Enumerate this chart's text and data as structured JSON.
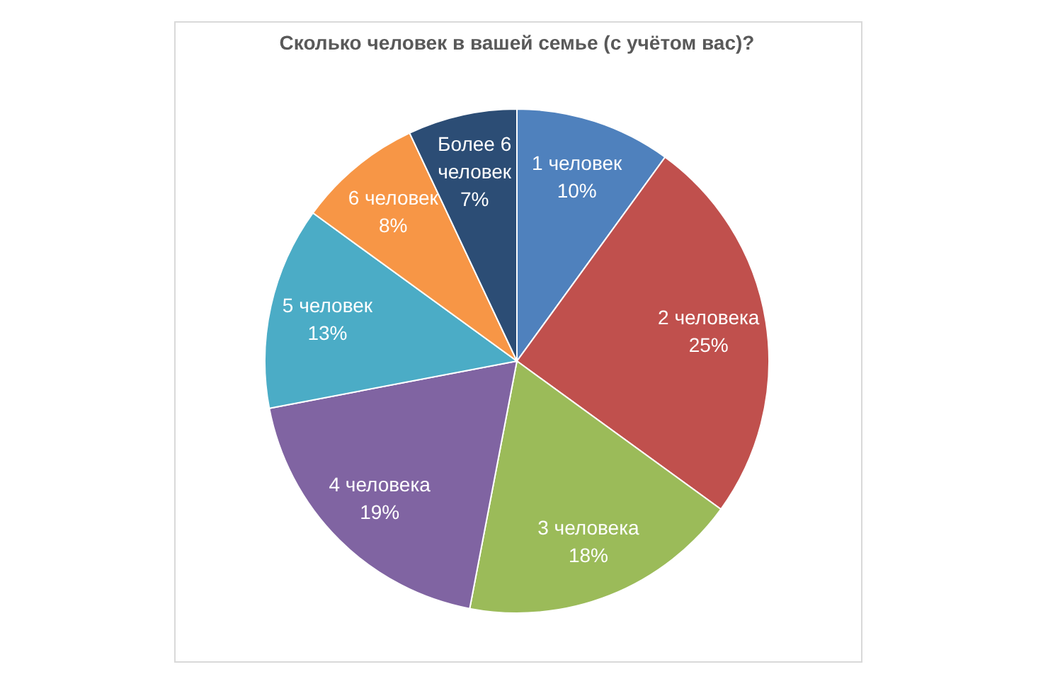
{
  "chart_data": {
    "type": "pie",
    "title": "Сколько человек в вашей семье (с учётом вас)?",
    "categories": [
      "1 человек",
      "2 человека",
      "3 человека",
      "4 человека",
      "5 человек",
      "6 человек",
      "Более 6 человек"
    ],
    "values": [
      10,
      25,
      18,
      19,
      13,
      8,
      7
    ],
    "value_labels": [
      "10%",
      "25%",
      "18%",
      "19%",
      "13%",
      "8%",
      "7%"
    ],
    "colors": [
      "#4f81bd",
      "#c0504d",
      "#9bbb59",
      "#8064a2",
      "#4bacc6",
      "#f79646",
      "#2c4d75"
    ]
  }
}
